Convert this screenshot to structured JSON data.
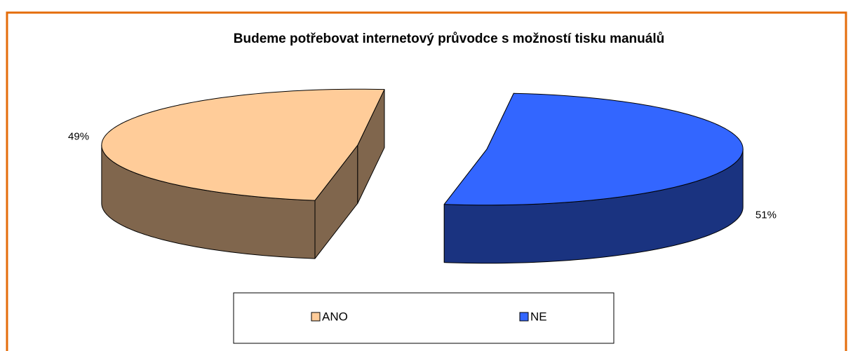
{
  "chart_data": {
    "type": "pie",
    "title": "Budeme potřebovat internetový průvodce s možností tisku manuálů",
    "categories": [
      "ANO",
      "NE"
    ],
    "values": [
      49,
      51
    ],
    "value_labels": [
      "49%",
      "51%"
    ],
    "colors": [
      "#FFCC99",
      "#3366FF"
    ],
    "legend": "bottom"
  }
}
